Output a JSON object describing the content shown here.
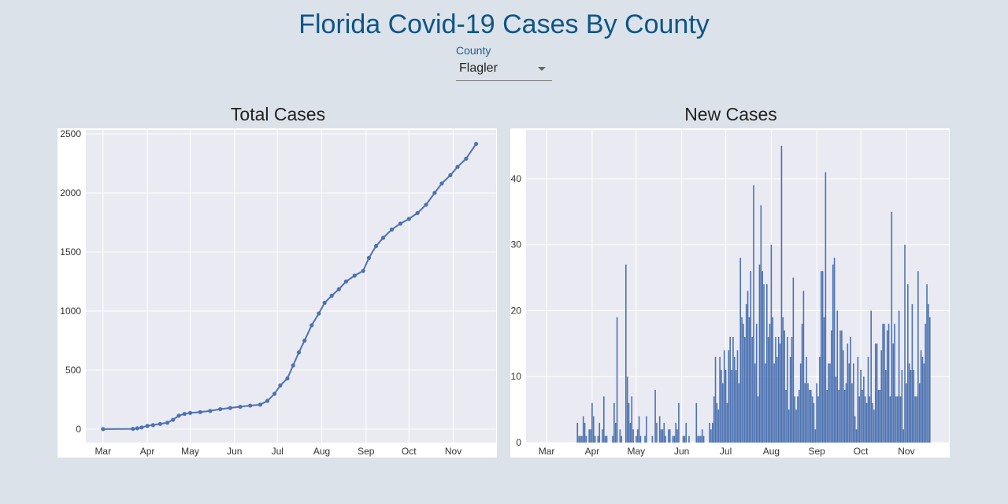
{
  "header": {
    "title": "Florida Covid-19 Cases By County"
  },
  "county_select": {
    "label": "County",
    "value": "Flagler"
  },
  "colors": {
    "series": "#4c72b0",
    "plot_bg": "#eaeaf2",
    "title": "#0d5587",
    "page_bg": "#dce2e9"
  },
  "chart_data": [
    {
      "type": "line",
      "title": "Total Cases",
      "xlabel": "",
      "ylabel": "",
      "x_ticks": [
        "Mar",
        "Apr",
        "May",
        "Jun",
        "Jul",
        "Aug",
        "Sep",
        "Oct",
        "Nov"
      ],
      "y_ticks": [
        0,
        500,
        1000,
        1500,
        2000,
        2500
      ],
      "ylim": [
        -113,
        2533
      ],
      "xlim": [
        "2020-02-18",
        "2020-12-01"
      ],
      "grid": true,
      "points": [
        [
          "2020-03-01",
          1
        ],
        [
          "2020-03-22",
          3
        ],
        [
          "2020-03-25",
          8
        ],
        [
          "2020-03-28",
          15
        ],
        [
          "2020-04-01",
          28
        ],
        [
          "2020-04-05",
          35
        ],
        [
          "2020-04-10",
          45
        ],
        [
          "2020-04-15",
          55
        ],
        [
          "2020-04-19",
          80
        ],
        [
          "2020-04-23",
          115
        ],
        [
          "2020-04-27",
          130
        ],
        [
          "2020-05-01",
          138
        ],
        [
          "2020-05-08",
          145
        ],
        [
          "2020-05-15",
          155
        ],
        [
          "2020-05-22",
          170
        ],
        [
          "2020-05-29",
          180
        ],
        [
          "2020-06-05",
          190
        ],
        [
          "2020-06-12",
          200
        ],
        [
          "2020-06-19",
          208
        ],
        [
          "2020-06-24",
          240
        ],
        [
          "2020-06-29",
          300
        ],
        [
          "2020-07-03",
          370
        ],
        [
          "2020-07-08",
          430
        ],
        [
          "2020-07-12",
          540
        ],
        [
          "2020-07-16",
          650
        ],
        [
          "2020-07-20",
          750
        ],
        [
          "2020-07-25",
          880
        ],
        [
          "2020-07-30",
          980
        ],
        [
          "2020-08-03",
          1070
        ],
        [
          "2020-08-08",
          1130
        ],
        [
          "2020-08-13",
          1185
        ],
        [
          "2020-08-18",
          1250
        ],
        [
          "2020-08-24",
          1300
        ],
        [
          "2020-08-30",
          1340
        ],
        [
          "2020-09-03",
          1450
        ],
        [
          "2020-09-08",
          1550
        ],
        [
          "2020-09-13",
          1620
        ],
        [
          "2020-09-19",
          1690
        ],
        [
          "2020-09-25",
          1740
        ],
        [
          "2020-10-01",
          1780
        ],
        [
          "2020-10-07",
          1830
        ],
        [
          "2020-10-13",
          1900
        ],
        [
          "2020-10-19",
          2000
        ],
        [
          "2020-10-24",
          2080
        ],
        [
          "2020-10-30",
          2150
        ],
        [
          "2020-11-04",
          2220
        ],
        [
          "2020-11-10",
          2290
        ],
        [
          "2020-11-17",
          2415
        ]
      ]
    },
    {
      "type": "bar",
      "title": "New Cases",
      "xlabel": "",
      "ylabel": "",
      "x_ticks": [
        "Mar",
        "Apr",
        "May",
        "Jun",
        "Jul",
        "Aug",
        "Sep",
        "Oct",
        "Nov"
      ],
      "y_ticks": [
        0,
        10,
        20,
        30,
        40
      ],
      "ylim": [
        0,
        47.4
      ],
      "xlim": [
        "2020-02-16",
        "2020-11-30"
      ],
      "grid": true,
      "start_date": "2020-03-22",
      "values": [
        3,
        1,
        1,
        1,
        4,
        3,
        1,
        0,
        2,
        2,
        6,
        4,
        1,
        0,
        1,
        3,
        0,
        2,
        7,
        1,
        1,
        0,
        0,
        0,
        1,
        6,
        3,
        19,
        0,
        2,
        1,
        0,
        0,
        27,
        10,
        6,
        3,
        7,
        2,
        0,
        1,
        2,
        4,
        1,
        0,
        0,
        1,
        4,
        0,
        0,
        0,
        1,
        0,
        8,
        3,
        0,
        4,
        2,
        2,
        3,
        1,
        0,
        2,
        2,
        0,
        1,
        1,
        3,
        2,
        6,
        0,
        0,
        1,
        1,
        3,
        0,
        1,
        0,
        0,
        0,
        0,
        6,
        1,
        1,
        1,
        2,
        1,
        0,
        0,
        0,
        3,
        2,
        3,
        7,
        13,
        6,
        5,
        13,
        11,
        9,
        14,
        11,
        6,
        14,
        16,
        11,
        16,
        13,
        11,
        14,
        9,
        28,
        19,
        18,
        16,
        21,
        23,
        19,
        26,
        16,
        39,
        12,
        18,
        7,
        27,
        36,
        26,
        24,
        12,
        24,
        16,
        18,
        30,
        19,
        12,
        16,
        13,
        16,
        15,
        45,
        19,
        17,
        8,
        16,
        5,
        13,
        16,
        25,
        7,
        5,
        7,
        8,
        12,
        18,
        23,
        9,
        13,
        9,
        8,
        8,
        7,
        6,
        2,
        9,
        7,
        13,
        26,
        26,
        19,
        41,
        8,
        12,
        12,
        17,
        27,
        28,
        10,
        20,
        8,
        17,
        17,
        14,
        8,
        9,
        15,
        12,
        16,
        9,
        12,
        4,
        2,
        13,
        7,
        11,
        8,
        10,
        7,
        6,
        13,
        7,
        20,
        6,
        5,
        15,
        15,
        8,
        8,
        14,
        18,
        18,
        11,
        17,
        18,
        7,
        35,
        15,
        18,
        7,
        7,
        20,
        7,
        11,
        2,
        30,
        9,
        24,
        12,
        11,
        21,
        11,
        7,
        7,
        26,
        9,
        14,
        13,
        12,
        18,
        24,
        21,
        19
      ]
    }
  ]
}
